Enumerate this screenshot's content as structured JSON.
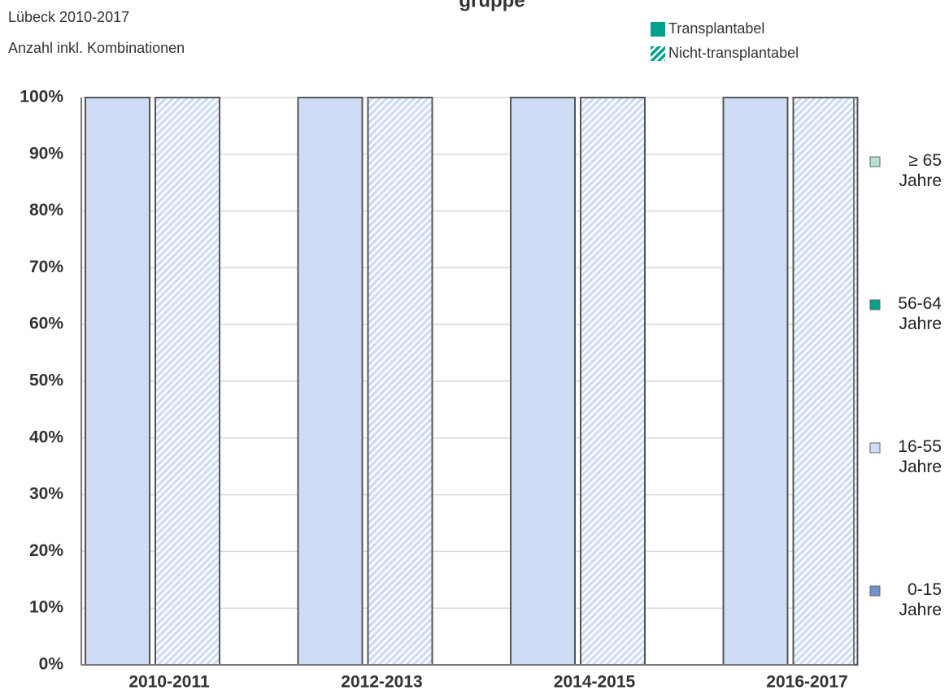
{
  "chart_data": {
    "type": "stacked_bar",
    "title": "gruppe",
    "subtitle": [
      "Lübeck 2010-2017",
      "Anzahl inkl. Kombinationen"
    ],
    "categories": [
      "2010-2011",
      "2012-2013",
      "2014-2015",
      "2016-2017"
    ],
    "groups": [
      {
        "name": "Transplantabel",
        "color": "#00a08c",
        "hatched": false
      },
      {
        "name": "Nicht-transplantabel",
        "color": "#00a08c",
        "hatched": true
      }
    ],
    "series": [
      {
        "name": "0-15 Jahre",
        "color": "#6f93cc",
        "values": [
          [
            0,
            0,
            0,
            0
          ],
          [
            0,
            0,
            0,
            0
          ]
        ]
      },
      {
        "name": "16-55 Jahre",
        "color": "#cfdcf5",
        "values": [
          [
            100,
            100,
            100,
            100
          ],
          [
            100,
            100,
            100,
            100
          ]
        ]
      },
      {
        "name": "56-64 Jahre",
        "color": "#00a08c",
        "values": [
          [
            0,
            0,
            0,
            0
          ],
          [
            0,
            0,
            0,
            0
          ]
        ]
      },
      {
        "name": "≥ 65 Jahre",
        "color": "#b6e0cf",
        "values": [
          [
            0,
            0,
            0,
            0
          ],
          [
            0,
            0,
            0,
            0
          ]
        ]
      }
    ],
    "ylim": [
      0,
      100
    ],
    "yticks": [
      {
        "value": 0,
        "label": "0%"
      },
      {
        "value": 10,
        "label": "10%"
      },
      {
        "value": 20,
        "label": "20%"
      },
      {
        "value": 30,
        "label": "30%"
      },
      {
        "value": 40,
        "label": "40%"
      },
      {
        "value": 50,
        "label": "50%"
      },
      {
        "value": 60,
        "label": "60%"
      },
      {
        "value": 70,
        "label": "70%"
      },
      {
        "value": 80,
        "label": "80%"
      },
      {
        "value": 90,
        "label": "90%"
      },
      {
        "value": 100,
        "label": "100%"
      }
    ],
    "grid": true
  }
}
